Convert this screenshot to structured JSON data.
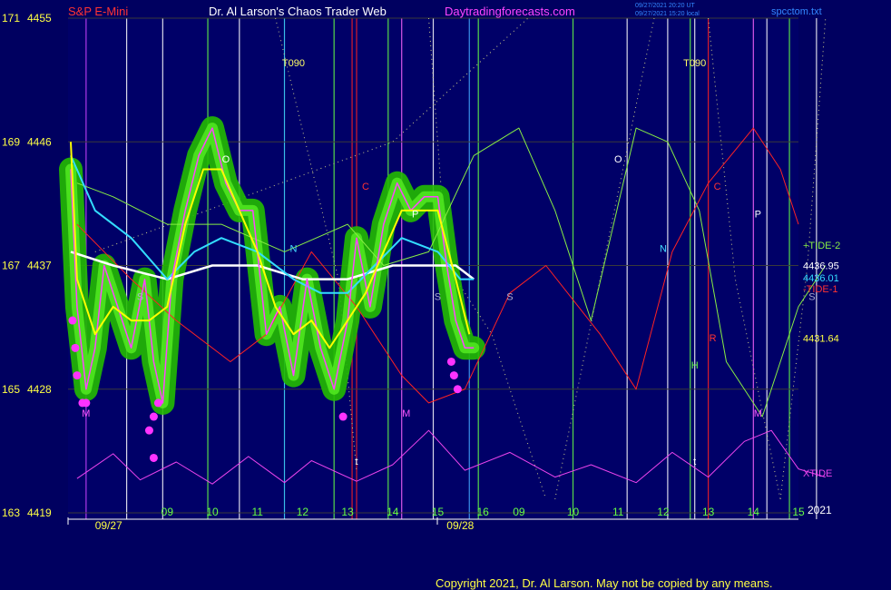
{
  "header": {
    "symbol": "S&P E-Mini",
    "site": "Dr. Al Larson's Chaos Trader Web",
    "url": "Daytradingforecasts.com",
    "timestamp_ut": "09/27/2021 20:20 UT",
    "timestamp_local": "09/27/2021 15:20 local",
    "filename": "spcctom.txt"
  },
  "copyright": "Copyright 2021, Dr. Al Larson. May not be copied by any means.",
  "colors": {
    "background": "#000060",
    "price_glow": "#22bb00",
    "price": "#ff44ff",
    "avg_fast": "#ffff00",
    "avg_cyan": "#33ddff",
    "avg_white": "#ffffff",
    "tide_green": "#88ee44",
    "tide_red": "#ff2222",
    "xtide": "#ee44ee",
    "axis_label": "#ffff44"
  },
  "chart_data": {
    "type": "line",
    "y_axis": {
      "range": [
        4419,
        4455
      ],
      "ticks": [
        {
          "left": "171",
          "right": "4455",
          "value": 4455
        },
        {
          "left": "169",
          "right": "4446",
          "value": 4446
        },
        {
          "left": "167",
          "right": "4437",
          "value": 4437
        },
        {
          "left": "165",
          "right": "4428",
          "value": 4428
        },
        {
          "left": "163",
          "right": "4419",
          "value": 4419
        }
      ]
    },
    "x_axis": {
      "range": [
        7.9,
        16.0
      ],
      "dates": [
        {
          "label": "09/27",
          "x": 8.35
        },
        {
          "label": "09/28",
          "x": 12.25
        }
      ],
      "hours": [
        {
          "label": "09",
          "x": 9.0
        },
        {
          "label": "10",
          "x": 9.5
        },
        {
          "label": "11",
          "x": 10.0
        },
        {
          "label": "12",
          "x": 10.5
        },
        {
          "label": "13",
          "x": 11.0
        },
        {
          "label": "14",
          "x": 11.5
        },
        {
          "label": "15",
          "x": 12.0
        },
        {
          "label": "16",
          "x": 12.5
        },
        {
          "label": "09",
          "x": 12.9
        },
        {
          "label": "10",
          "x": 13.5
        },
        {
          "label": "11",
          "x": 14.0
        },
        {
          "label": "12",
          "x": 14.5
        },
        {
          "label": "13",
          "x": 15.0
        },
        {
          "label": "14",
          "x": 15.5
        },
        {
          "label": "15",
          "x": 16.0
        }
      ],
      "year_label": "2021"
    },
    "series": [
      {
        "name": "+TIDE-2",
        "color": "#88ee44",
        "points": [
          [
            8.0,
            4443
          ],
          [
            8.4,
            4442
          ],
          [
            9.0,
            4440
          ],
          [
            9.6,
            4440
          ],
          [
            10.3,
            4438
          ],
          [
            11.0,
            4440
          ],
          [
            11.4,
            4437
          ],
          [
            11.9,
            4438
          ],
          [
            12.4,
            4445
          ],
          [
            12.9,
            4447
          ],
          [
            13.3,
            4441
          ],
          [
            13.7,
            4433
          ],
          [
            14.2,
            4447
          ],
          [
            14.55,
            4446
          ],
          [
            14.9,
            4441
          ],
          [
            15.2,
            4430
          ],
          [
            15.6,
            4426
          ],
          [
            16.0,
            4434
          ],
          [
            16.3,
            4437
          ]
        ]
      },
      {
        "name": "-TIDE-1",
        "color": "#ff2222",
        "points": [
          [
            8.0,
            4440
          ],
          [
            8.6,
            4436
          ],
          [
            9.1,
            4433
          ],
          [
            9.7,
            4430
          ],
          [
            10.1,
            4432
          ],
          [
            10.6,
            4438
          ],
          [
            11.1,
            4434
          ],
          [
            11.6,
            4429
          ],
          [
            11.9,
            4427
          ],
          [
            12.3,
            4428
          ],
          [
            12.8,
            4435
          ],
          [
            13.2,
            4437
          ],
          [
            13.8,
            4432
          ],
          [
            14.2,
            4428
          ],
          [
            14.6,
            4438
          ],
          [
            15.0,
            4443
          ],
          [
            15.5,
            4447
          ],
          [
            15.8,
            4444
          ],
          [
            16.0,
            4440
          ]
        ]
      },
      {
        "name": "XTIDE",
        "color": "#ee44ee",
        "points": [
          [
            8.0,
            4421.5
          ],
          [
            8.4,
            4423.3
          ],
          [
            8.7,
            4421.4
          ],
          [
            9.1,
            4422.7
          ],
          [
            9.5,
            4421.1
          ],
          [
            9.9,
            4423.1
          ],
          [
            10.3,
            4421.2
          ],
          [
            10.6,
            4422.8
          ],
          [
            11.1,
            4421.3
          ],
          [
            11.5,
            4422.5
          ],
          [
            11.9,
            4425.0
          ],
          [
            12.3,
            4422.1
          ],
          [
            12.8,
            4423.4
          ],
          [
            13.3,
            4421.6
          ],
          [
            13.7,
            4422.5
          ],
          [
            14.2,
            4421.2
          ],
          [
            14.6,
            4423.4
          ],
          [
            15.0,
            4421.6
          ],
          [
            15.4,
            4424.2
          ],
          [
            15.7,
            4425.0
          ],
          [
            16.0,
            4422.2
          ],
          [
            16.3,
            4421.6
          ]
        ]
      },
      {
        "name": "Price",
        "color": "#ff44ff",
        "points": [
          [
            7.93,
            4444
          ],
          [
            8.0,
            4434
          ],
          [
            8.1,
            4428
          ],
          [
            8.2,
            4431
          ],
          [
            8.3,
            4437
          ],
          [
            8.45,
            4434
          ],
          [
            8.6,
            4431
          ],
          [
            8.75,
            4436
          ],
          [
            8.85,
            4430
          ],
          [
            8.95,
            4427
          ],
          [
            9.05,
            4436
          ],
          [
            9.2,
            4441
          ],
          [
            9.35,
            4445
          ],
          [
            9.5,
            4447
          ],
          [
            9.65,
            4443
          ],
          [
            9.8,
            4441
          ],
          [
            9.95,
            4441
          ],
          [
            10.1,
            4432
          ],
          [
            10.25,
            4434
          ],
          [
            10.4,
            4429
          ],
          [
            10.55,
            4436
          ],
          [
            10.7,
            4431
          ],
          [
            10.85,
            4428
          ],
          [
            11.0,
            4433
          ],
          [
            11.1,
            4439
          ],
          [
            11.25,
            4434
          ],
          [
            11.4,
            4440
          ],
          [
            11.55,
            4443
          ],
          [
            11.7,
            4441
          ],
          [
            11.85,
            4442
          ],
          [
            12.0,
            4442
          ],
          [
            12.1,
            4437
          ],
          [
            12.2,
            4433
          ],
          [
            12.3,
            4431
          ],
          [
            12.4,
            4431
          ]
        ]
      },
      {
        "name": "Fast average",
        "color": "#ffff00",
        "points": [
          [
            7.93,
            4446
          ],
          [
            8.0,
            4436
          ],
          [
            8.2,
            4432
          ],
          [
            8.4,
            4434
          ],
          [
            8.6,
            4433
          ],
          [
            8.8,
            4433
          ],
          [
            9.0,
            4434
          ],
          [
            9.2,
            4440
          ],
          [
            9.4,
            4444
          ],
          [
            9.6,
            4444
          ],
          [
            9.8,
            4441
          ],
          [
            10.0,
            4438
          ],
          [
            10.2,
            4434
          ],
          [
            10.4,
            4432
          ],
          [
            10.6,
            4433
          ],
          [
            10.8,
            4431
          ],
          [
            11.0,
            4433
          ],
          [
            11.2,
            4435
          ],
          [
            11.4,
            4438
          ],
          [
            11.6,
            4441
          ],
          [
            11.8,
            4441
          ],
          [
            12.0,
            4441
          ],
          [
            12.2,
            4436
          ],
          [
            12.35,
            4432
          ]
        ]
      },
      {
        "name": "Cyan average",
        "color": "#33ddff",
        "points": [
          [
            7.93,
            4445
          ],
          [
            8.2,
            4441
          ],
          [
            8.6,
            4439
          ],
          [
            9.0,
            4436
          ],
          [
            9.3,
            4438
          ],
          [
            9.6,
            4439
          ],
          [
            10.0,
            4438
          ],
          [
            10.4,
            4436
          ],
          [
            10.7,
            4435
          ],
          [
            11.0,
            4435
          ],
          [
            11.3,
            4437
          ],
          [
            11.6,
            4439
          ],
          [
            12.0,
            4438
          ],
          [
            12.25,
            4436
          ],
          [
            12.4,
            4436
          ]
        ]
      },
      {
        "name": "White average",
        "color": "#ffffff",
        "points": [
          [
            7.93,
            4438
          ],
          [
            8.4,
            4437
          ],
          [
            9.0,
            4436
          ],
          [
            9.5,
            4437
          ],
          [
            10.0,
            4437
          ],
          [
            10.5,
            4436
          ],
          [
            11.0,
            4436
          ],
          [
            11.5,
            4437
          ],
          [
            12.0,
            4437
          ],
          [
            12.2,
            4437
          ],
          [
            12.4,
            4436
          ]
        ]
      }
    ],
    "pink_dots": [
      [
        7.95,
        4433
      ],
      [
        7.98,
        4431
      ],
      [
        8.0,
        4429
      ],
      [
        8.06,
        4427
      ],
      [
        8.1,
        4427
      ],
      [
        8.8,
        4425
      ],
      [
        8.85,
        4426
      ],
      [
        8.9,
        4427
      ],
      [
        8.85,
        4423
      ],
      [
        10.95,
        4426
      ],
      [
        12.15,
        4430
      ],
      [
        12.18,
        4429
      ],
      [
        12.22,
        4428
      ]
    ],
    "vertical_lines": [
      {
        "x": 8.1,
        "color": "#cc44ff"
      },
      {
        "x": 8.55,
        "color": "#ffffff"
      },
      {
        "x": 8.95,
        "color": "#ffffff"
      },
      {
        "x": 9.45,
        "color": "#66ff44"
      },
      {
        "x": 9.8,
        "color": "#ffffff"
      },
      {
        "x": 10.3,
        "color": "#44ddff"
      },
      {
        "x": 10.85,
        "color": "#66ff44"
      },
      {
        "x": 11.05,
        "color": "#ff2222"
      },
      {
        "x": 11.1,
        "color": "#ff2222"
      },
      {
        "x": 11.45,
        "color": "#66ff44"
      },
      {
        "x": 11.6,
        "color": "#ff66ff"
      },
      {
        "x": 11.95,
        "color": "#ffffff"
      },
      {
        "x": 12.35,
        "color": "#44aaff"
      },
      {
        "x": 12.45,
        "color": "#66ff44"
      },
      {
        "x": 13.5,
        "color": "#66ff44"
      },
      {
        "x": 14.1,
        "color": "#ffffff"
      },
      {
        "x": 14.55,
        "color": "#ffffff"
      },
      {
        "x": 14.8,
        "color": "#66ff44"
      },
      {
        "x": 14.85,
        "color": "#ffffff"
      },
      {
        "x": 15.0,
        "color": "#ff2222"
      },
      {
        "x": 15.5,
        "color": "#ff66ff"
      },
      {
        "x": 15.65,
        "color": "#ffffff"
      },
      {
        "x": 15.9,
        "color": "#66ff44"
      },
      {
        "x": 16.2,
        "color": "#ffffff"
      }
    ],
    "annotations": [
      {
        "text": "T090",
        "x": 10.4,
        "y": 4451.5,
        "color": "#ffff66"
      },
      {
        "text": "T090",
        "x": 14.85,
        "y": 4451.5,
        "color": "#ffff66"
      },
      {
        "text": "O",
        "x": 9.65,
        "y": 4444.5,
        "color": "#ffffff"
      },
      {
        "text": "O",
        "x": 14.0,
        "y": 4444.5,
        "color": "#ffffff"
      },
      {
        "text": "C",
        "x": 11.2,
        "y": 4442.5,
        "color": "#ff3333"
      },
      {
        "text": "C",
        "x": 15.1,
        "y": 4442.5,
        "color": "#ff3333"
      },
      {
        "text": "P",
        "x": 11.75,
        "y": 4440.5,
        "color": "#ffffff"
      },
      {
        "text": "P",
        "x": 15.55,
        "y": 4440.5,
        "color": "#ffffff"
      },
      {
        "text": "N",
        "x": 10.4,
        "y": 4438,
        "color": "#44ddff"
      },
      {
        "text": "N",
        "x": 14.5,
        "y": 4438,
        "color": "#44ddff"
      },
      {
        "text": "S",
        "x": 8.7,
        "y": 4434.5,
        "color": "#aaaacc"
      },
      {
        "text": "S",
        "x": 12.0,
        "y": 4434.5,
        "color": "#aaaacc"
      },
      {
        "text": "S",
        "x": 12.8,
        "y": 4434.5,
        "color": "#aaaacc"
      },
      {
        "text": "S",
        "x": 16.15,
        "y": 4434.5,
        "color": "#aaaacc"
      },
      {
        "text": "M",
        "x": 8.1,
        "y": 4426,
        "color": "#ff55ff"
      },
      {
        "text": "M",
        "x": 11.65,
        "y": 4426,
        "color": "#ff55ff"
      },
      {
        "text": "M",
        "x": 15.55,
        "y": 4426,
        "color": "#ff55ff"
      },
      {
        "text": "R",
        "x": 15.05,
        "y": 4431.5,
        "color": "#ff3333"
      },
      {
        "text": "H",
        "x": 14.85,
        "y": 4429.5,
        "color": "#66ff44"
      },
      {
        "text": "t",
        "x": 11.1,
        "y": 4422.5,
        "color": "#ffffff"
      },
      {
        "text": "t",
        "x": 14.85,
        "y": 4422.5,
        "color": "#ffffff"
      }
    ],
    "right_labels": [
      {
        "text": "+TIDE-2",
        "y": 4438.5,
        "color": "#88ee44"
      },
      {
        "text": "4436.95",
        "y": 4437.0,
        "color": "#ffffff"
      },
      {
        "text": "4436.01",
        "y": 4436.1,
        "color": "#33ddff"
      },
      {
        "text": "-TIDE-1",
        "y": 4435.3,
        "color": "#ff3333"
      },
      {
        "text": "4431.64",
        "y": 4431.7,
        "color": "#ffff44"
      },
      {
        "text": "XTIDE",
        "y": 4421.9,
        "color": "#ee44ee"
      }
    ]
  }
}
